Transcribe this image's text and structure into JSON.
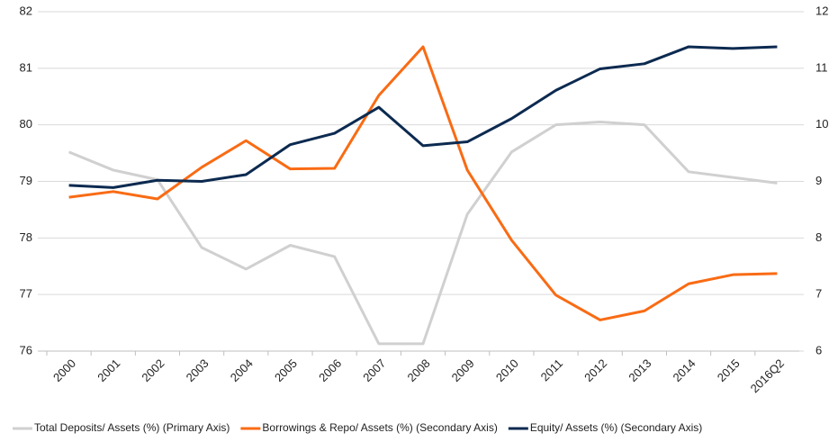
{
  "chart_data": {
    "type": "line",
    "categories": [
      "2000",
      "2001",
      "2002",
      "2003",
      "2004",
      "2005",
      "2006",
      "2007",
      "2008",
      "2009",
      "2010",
      "2011",
      "2012",
      "2013",
      "2014",
      "2015",
      "2016Q2"
    ],
    "series": [
      {
        "name": "Total Deposits/ Assets (%) (Primary Axis)",
        "color": "#d0d0d0",
        "axis": "y",
        "values": [
          79.52,
          79.2,
          79.03,
          77.83,
          77.45,
          77.87,
          77.67,
          76.13,
          76.13,
          78.42,
          79.52,
          80.0,
          80.05,
          80.0,
          79.17,
          79.07,
          78.97
        ]
      },
      {
        "name": "Borrowings & Repo/ Assets (%) (Secondary Axis)",
        "color": "#f96b14",
        "axis": "y2",
        "values": [
          8.72,
          8.82,
          8.69,
          9.25,
          9.72,
          9.22,
          9.23,
          10.52,
          11.38,
          9.2,
          7.96,
          6.99,
          6.55,
          6.71,
          7.19,
          7.35,
          7.37
        ]
      },
      {
        "name": "Equity/ Assets (%) (Secondary Axis)",
        "color": "#0c2a50",
        "axis": "y2",
        "values": [
          8.93,
          8.89,
          9.02,
          9.0,
          9.12,
          9.65,
          9.85,
          10.31,
          9.63,
          9.7,
          10.11,
          10.61,
          10.99,
          11.08,
          11.38,
          11.35,
          11.38
        ]
      }
    ],
    "ylim": [
      76,
      82
    ],
    "yticks": [
      76,
      77,
      78,
      79,
      80,
      81,
      82
    ],
    "y2lim": [
      6,
      12
    ],
    "y2ticks": [
      6,
      7,
      8,
      9,
      10,
      11,
      12
    ],
    "grid": true,
    "legend": "bottom"
  }
}
